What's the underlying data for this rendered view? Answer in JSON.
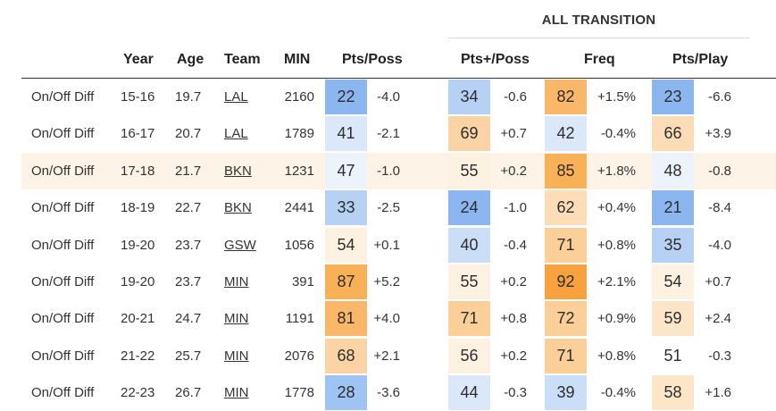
{
  "group_header": "ALL TRANSITION",
  "headers": {
    "year": "Year",
    "age": "Age",
    "team": "Team",
    "min": "MIN",
    "pts_poss": "Pts/Poss",
    "pts_plus_poss": "Pts+/Poss",
    "freq": "Freq",
    "pts_play": "Pts/Play"
  },
  "rows": [
    {
      "label": "On/Off Diff",
      "year": "15-16",
      "age": "19.7",
      "team": "LAL",
      "min": "2160",
      "pts_poss": "22",
      "pts_poss_diff": "-4.0",
      "pts_plus_poss": "34",
      "pts_plus_poss_diff": "-0.6",
      "freq": "82",
      "freq_diff": "+1.5%",
      "pts_play": "23",
      "pts_play_diff": "-6.6",
      "highlight": false
    },
    {
      "label": "On/Off Diff",
      "year": "16-17",
      "age": "20.7",
      "team": "LAL",
      "min": "1789",
      "pts_poss": "41",
      "pts_poss_diff": "-2.1",
      "pts_plus_poss": "69",
      "pts_plus_poss_diff": "+0.7",
      "freq": "42",
      "freq_diff": "-0.4%",
      "pts_play": "66",
      "pts_play_diff": "+3.9",
      "highlight": false
    },
    {
      "label": "On/Off Diff",
      "year": "17-18",
      "age": "21.7",
      "team": "BKN",
      "min": "1231",
      "pts_poss": "47",
      "pts_poss_diff": "-1.0",
      "pts_plus_poss": "55",
      "pts_plus_poss_diff": "+0.2",
      "freq": "85",
      "freq_diff": "+1.8%",
      "pts_play": "48",
      "pts_play_diff": "-0.8",
      "highlight": true
    },
    {
      "label": "On/Off Diff",
      "year": "18-19",
      "age": "22.7",
      "team": "BKN",
      "min": "2441",
      "pts_poss": "33",
      "pts_poss_diff": "-2.5",
      "pts_plus_poss": "24",
      "pts_plus_poss_diff": "-1.0",
      "freq": "62",
      "freq_diff": "+0.4%",
      "pts_play": "21",
      "pts_play_diff": "-8.4",
      "highlight": false
    },
    {
      "label": "On/Off Diff",
      "year": "19-20",
      "age": "23.7",
      "team": "GSW",
      "min": "1056",
      "pts_poss": "54",
      "pts_poss_diff": "+0.1",
      "pts_plus_poss": "40",
      "pts_plus_poss_diff": "-0.4",
      "freq": "71",
      "freq_diff": "+0.8%",
      "pts_play": "35",
      "pts_play_diff": "-4.0",
      "highlight": false
    },
    {
      "label": "On/Off Diff",
      "year": "19-20",
      "age": "23.7",
      "team": "MIN",
      "min": "391",
      "pts_poss": "87",
      "pts_poss_diff": "+5.2",
      "pts_plus_poss": "55",
      "pts_plus_poss_diff": "+0.2",
      "freq": "92",
      "freq_diff": "+2.1%",
      "pts_play": "54",
      "pts_play_diff": "+0.7",
      "highlight": false
    },
    {
      "label": "On/Off Diff",
      "year": "20-21",
      "age": "24.7",
      "team": "MIN",
      "min": "1191",
      "pts_poss": "81",
      "pts_poss_diff": "+4.0",
      "pts_plus_poss": "71",
      "pts_plus_poss_diff": "+0.8",
      "freq": "72",
      "freq_diff": "+0.9%",
      "pts_play": "59",
      "pts_play_diff": "+2.4",
      "highlight": false
    },
    {
      "label": "On/Off Diff",
      "year": "21-22",
      "age": "25.7",
      "team": "MIN",
      "min": "2076",
      "pts_poss": "68",
      "pts_poss_diff": "+2.1",
      "pts_plus_poss": "56",
      "pts_plus_poss_diff": "+0.2",
      "freq": "71",
      "freq_diff": "+0.8%",
      "pts_play": "51",
      "pts_play_diff": "-0.3",
      "highlight": false
    },
    {
      "label": "On/Off Diff",
      "year": "22-23",
      "age": "26.7",
      "team": "MIN",
      "min": "1778",
      "pts_poss": "28",
      "pts_poss_diff": "-3.6",
      "pts_plus_poss": "44",
      "pts_plus_poss_diff": "-0.3",
      "freq": "39",
      "freq_diff": "-0.4%",
      "pts_play": "58",
      "pts_play_diff": "+1.6",
      "highlight": false
    }
  ]
}
